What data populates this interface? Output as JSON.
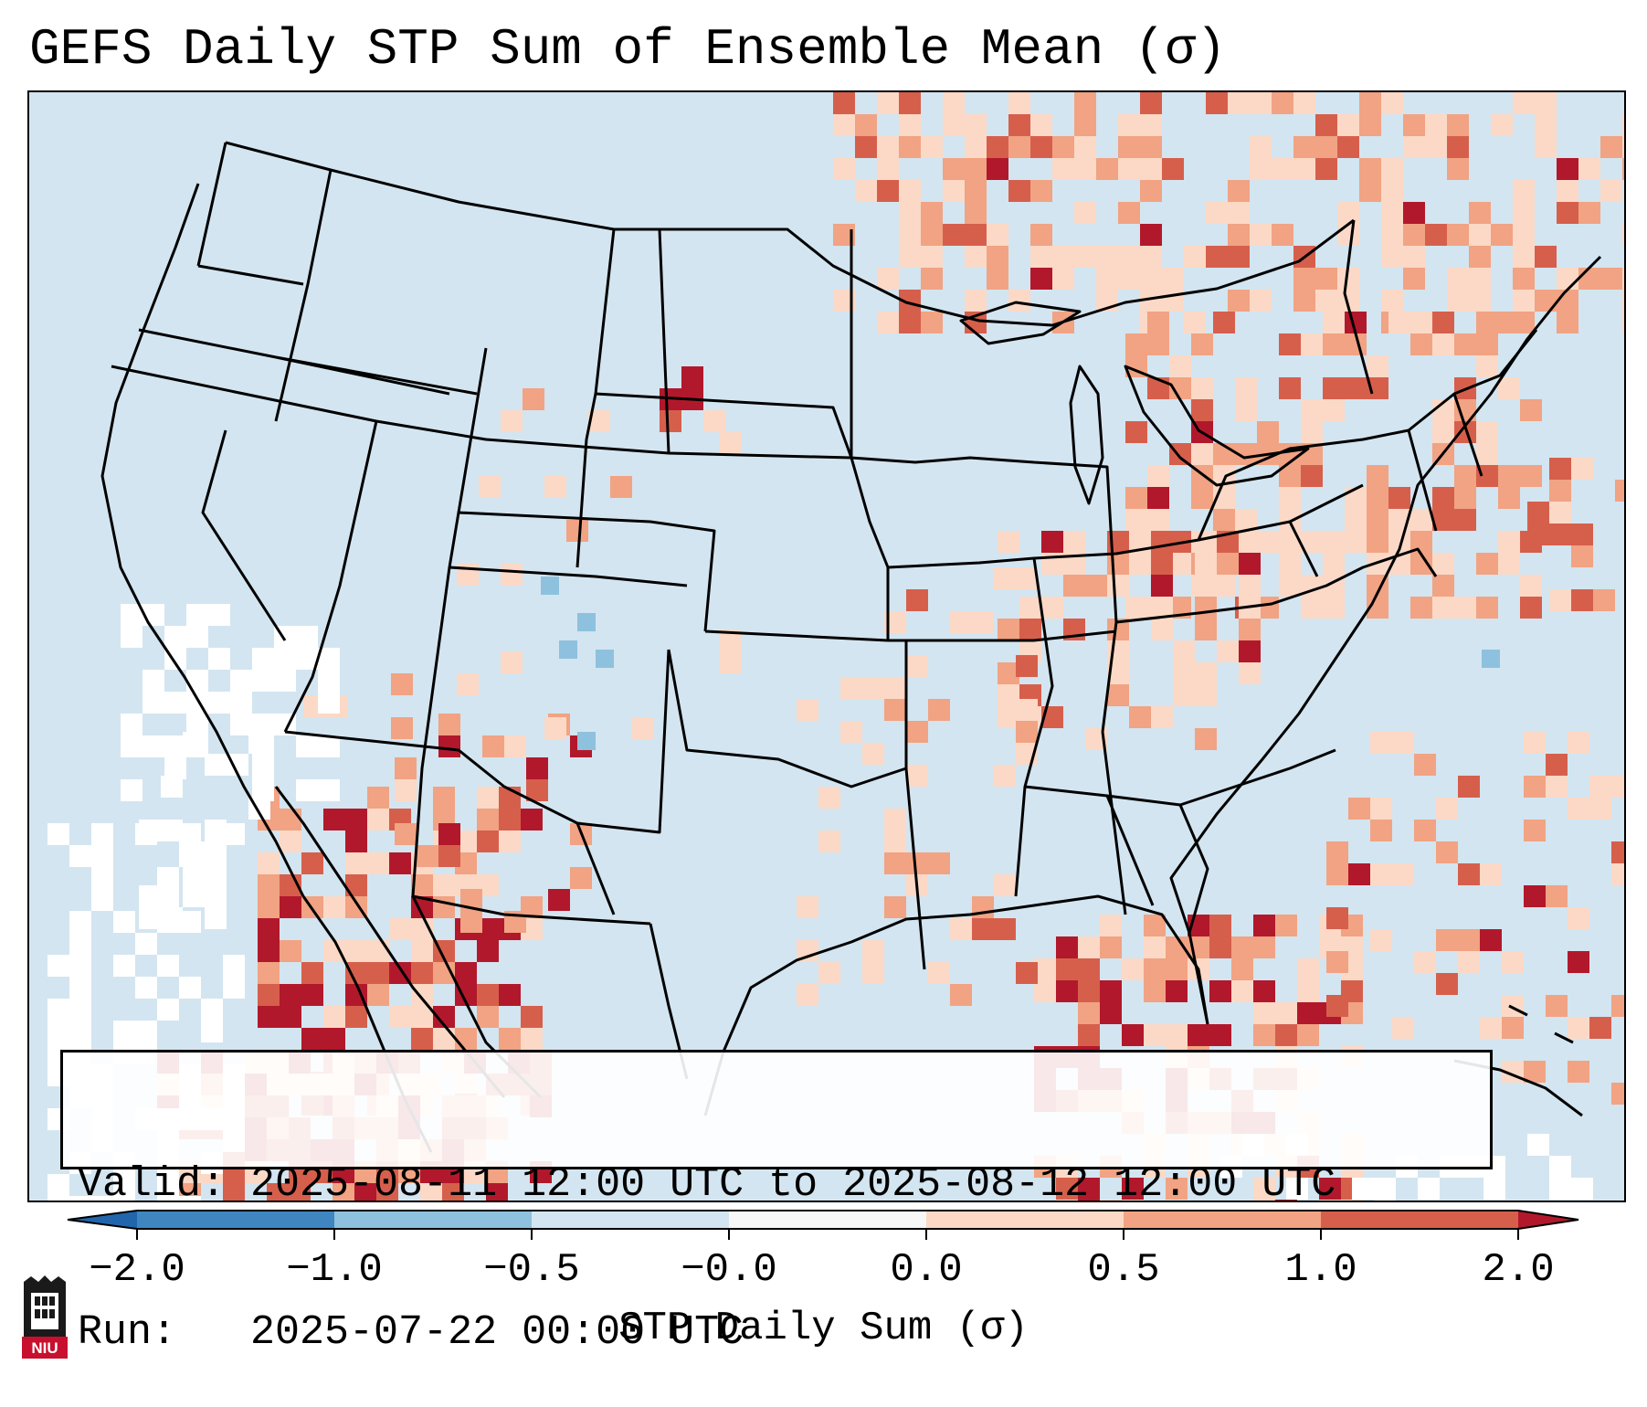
{
  "title": "GEFS Daily STP Sum of Ensemble Mean (σ)",
  "info": {
    "valid_line": "Valid: 2025-08-11 12:00 UTC to 2025-08-12 12:00 UTC",
    "run_line": "Run:   2025-07-22 00:00 UTC"
  },
  "colorbar": {
    "label": "STP Daily Sum (σ)",
    "ticks": [
      "−2.0",
      "−1.0",
      "−0.5",
      "−0.0",
      "0.0",
      "0.5",
      "1.0",
      "2.0"
    ],
    "colors": [
      "#3f86c1",
      "#8ec1de",
      "#d3e5f0",
      "#f7f7f7",
      "#fbd9c6",
      "#f1a383",
      "#d65f4c",
      "#b2182b"
    ],
    "extend": "both"
  },
  "map": {
    "ocean_color": "#d3e5f0",
    "border_color": "#000000",
    "cell_colors": {
      "light": "#fbd9c6",
      "mid": "#f1a383",
      "strong": "#d65f4c",
      "extreme": "#b2182b",
      "neg_light": "#8ec1de",
      "neutral": "#ffffff"
    }
  },
  "logo": {
    "text": "NIU",
    "colors": {
      "red": "#c8102e",
      "black": "#1a1a1a"
    }
  }
}
